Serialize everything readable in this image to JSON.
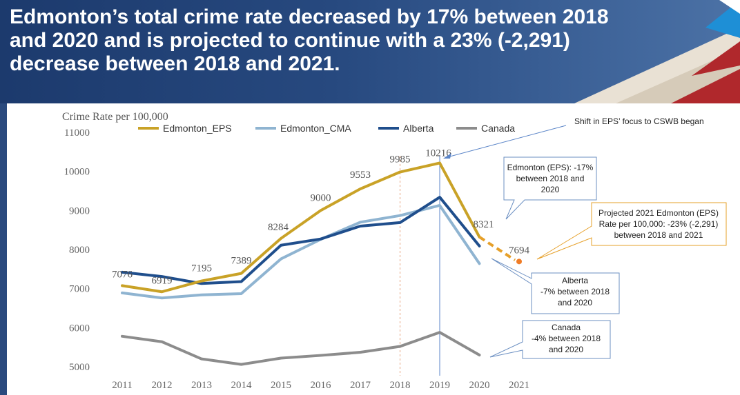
{
  "header": {
    "title": "Edmonton’s total crime rate decreased by 17% between 2018 and 2020 and is projected to continue with a 23% (-2,291) decrease between 2018 and 2021."
  },
  "chart_data": {
    "type": "line",
    "ylabel": "Crime Rate per 100,000",
    "ylim": [
      5000,
      11000
    ],
    "yticks": [
      11000,
      10000,
      9000,
      8000,
      7000,
      6000,
      5000
    ],
    "x": [
      "2011",
      "2012",
      "2013",
      "2014",
      "2015",
      "2016",
      "2017",
      "2018",
      "2019",
      "2020",
      "2021"
    ],
    "legend_position": "top",
    "grid": false,
    "series": [
      {
        "name": "Edmonton_EPS",
        "color": "#c9a227",
        "values": [
          7076,
          6919,
          7195,
          7389,
          8284,
          9000,
          9553,
          9985,
          10216,
          8321,
          null
        ],
        "labels": [
          "7076",
          "6919",
          "7195",
          "7389",
          "8284",
          "9000",
          "9553",
          "9985",
          "10216",
          "8321",
          ""
        ]
      },
      {
        "name": "Edmonton_CMA",
        "color": "#8fb4d1",
        "values": [
          6890,
          6760,
          6840,
          6870,
          7760,
          8260,
          8700,
          8870,
          9130,
          7640,
          null
        ]
      },
      {
        "name": "Alberta",
        "color": "#1f4e8c",
        "values": [
          7420,
          7310,
          7130,
          7180,
          8110,
          8270,
          8600,
          8690,
          9340,
          8090,
          null
        ]
      },
      {
        "name": "Canada",
        "color": "#8c8c8c",
        "values": [
          5780,
          5640,
          5200,
          5060,
          5220,
          5290,
          5370,
          5520,
          5880,
          5300,
          null
        ]
      }
    ],
    "projection": {
      "color": "#e6a02a",
      "point_color": "#f07c26",
      "from_x": "2020",
      "from_value": 8321,
      "to_x": "2021",
      "value": 7694,
      "label": "7694"
    },
    "markers": [
      {
        "x": "2018",
        "color": "#e6a07a",
        "style": "dotted"
      },
      {
        "x": "2019",
        "color": "#5b85c8",
        "style": "solid"
      }
    ],
    "annotations": {
      "shift": "Shift in EPS’ focus to CSWB began",
      "eps": [
        "Edmonton (EPS): -17%",
        "between 2018 and",
        "2020"
      ],
      "projected": [
        "Projected 2021 Edmonton (EPS)",
        "Rate per 100,000: -23%  (-2,291)",
        "between 2018 and 2021"
      ],
      "alberta": [
        "Alberta",
        "-7% between 2018",
        "and 2020"
      ],
      "canada": [
        "Canada",
        "-4% between 2018",
        "and 2020"
      ]
    }
  }
}
